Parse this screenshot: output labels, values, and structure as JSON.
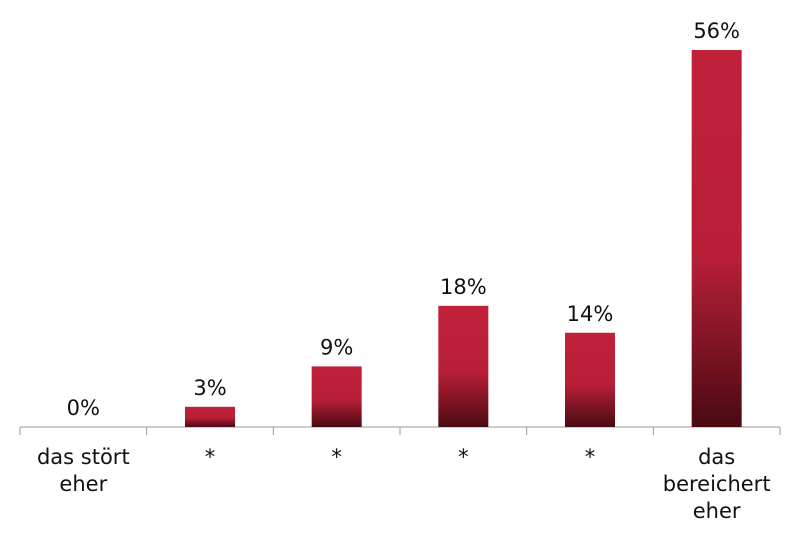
{
  "chart_data": {
    "type": "bar",
    "categories": [
      "das stört eher",
      "*",
      "*",
      "*",
      "*",
      "das bereichert eher"
    ],
    "values": [
      0,
      3,
      9,
      18,
      14,
      56
    ],
    "value_labels": [
      "0%",
      "3%",
      "9%",
      "18%",
      "14%",
      "56%"
    ],
    "color": "#c0203a"
  }
}
